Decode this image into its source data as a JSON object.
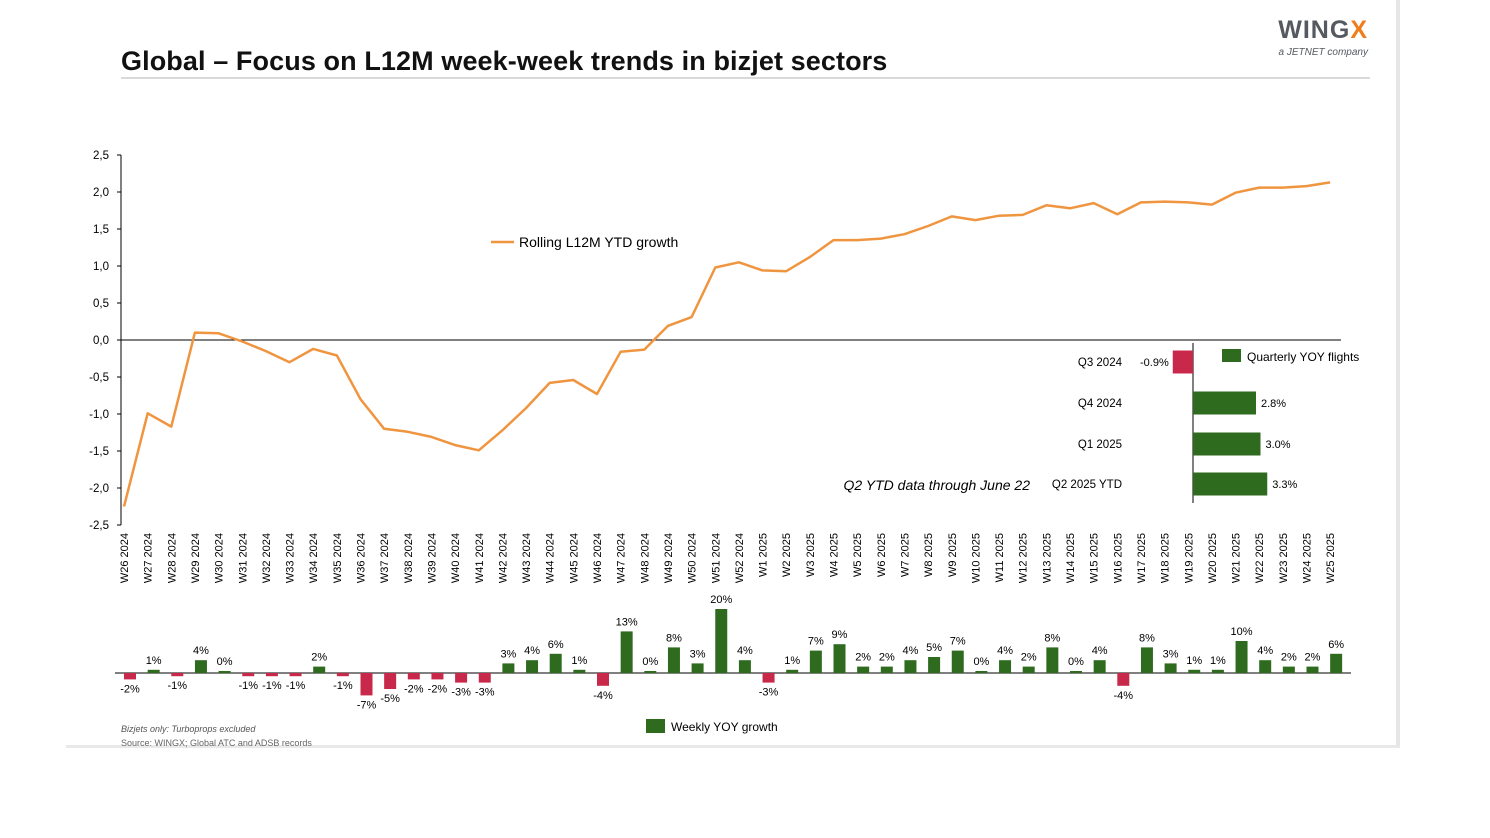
{
  "header": {
    "title": "Global – Focus on L12M week-week trends in bizjet sectors",
    "logo_word_main": "WING",
    "logo_word_x": "X",
    "logo_sub": "a JETNET company"
  },
  "footer": {
    "note": "Bizjets only: Turboprops excluded",
    "source": "Source: WINGX; Global ATC and ADSB records"
  },
  "colors": {
    "line": "#f0953f",
    "positive": "#2e6b1f",
    "negative": "#c8284a",
    "axis": "#000000"
  },
  "chart_data": [
    {
      "type": "line",
      "series": [
        {
          "name": "Rolling L12M YTD growth",
          "values": [
            -2.25,
            -0.99,
            -1.17,
            0.1,
            0.09,
            -0.02,
            -0.15,
            -0.3,
            -0.12,
            -0.21,
            -0.8,
            -1.2,
            -1.24,
            -1.31,
            -1.42,
            -1.49,
            -1.22,
            -0.92,
            -0.58,
            -0.54,
            -0.73,
            -0.16,
            -0.13,
            0.19,
            0.31,
            0.98,
            1.05,
            0.94,
            0.93,
            1.12,
            1.35,
            1.35,
            1.37,
            1.43,
            1.54,
            1.67,
            1.62,
            1.68,
            1.69,
            1.82,
            1.78,
            1.85,
            1.7,
            1.86,
            1.87,
            1.86,
            1.83,
            1.99,
            2.06,
            2.06,
            2.08,
            2.13
          ]
        }
      ],
      "categories": [
        "W26 2024",
        "W27 2024",
        "W28 2024",
        "W29 2024",
        "W30 2024",
        "W31 2024",
        "W32 2024",
        "W33 2024",
        "W34 2024",
        "W35 2024",
        "W36 2024",
        "W37 2024",
        "W38 2024",
        "W39 2024",
        "W40 2024",
        "W41 2024",
        "W42 2024",
        "W43 2024",
        "W44 2024",
        "W45 2024",
        "W46 2024",
        "W47 2024",
        "W48 2024",
        "W49 2024",
        "W50 2024",
        "W51 2024",
        "W52 2024",
        "W1 2025",
        "W2 2025",
        "W3 2025",
        "W4 2025",
        "W5 2025",
        "W6 2025",
        "W7 2025",
        "W8 2025",
        "W9 2025",
        "W10 2025",
        "W11 2025",
        "W12 2025",
        "W13 2025",
        "W14 2025",
        "W15 2025",
        "W16 2025",
        "W17 2025",
        "W18 2025",
        "W19 2025",
        "W20 2025",
        "W21 2025",
        "W22 2025",
        "W23 2025",
        "W24 2025",
        "W25 2025"
      ],
      "yticks": [
        "2,5",
        "2,0",
        "1,5",
        "1,0",
        "0,5",
        "0,0",
        "-0,5",
        "-1,0",
        "-1,5",
        "-2,0",
        "-2,5"
      ],
      "ylim": [
        -2.5,
        2.5
      ],
      "legend": "top-center",
      "grid": false
    },
    {
      "type": "bar",
      "series": [
        {
          "name": "Weekly YOY growth",
          "values": [
            -2,
            1,
            -1,
            4,
            0,
            -1,
            -1,
            -1,
            2,
            -1,
            -7,
            -5,
            -2,
            -2,
            -3,
            -3,
            3,
            4,
            6,
            1,
            -4,
            13,
            0,
            8,
            3,
            20,
            4,
            -3,
            1,
            7,
            9,
            2,
            2,
            4,
            5,
            7,
            0,
            4,
            2,
            8,
            0,
            4,
            -4,
            8,
            3,
            1,
            1,
            10,
            4,
            2,
            2,
            6
          ],
          "labels": [
            "-2%",
            "1%",
            "-1%",
            "4%",
            "0%",
            "-1%",
            "-1%",
            "-1%",
            "2%",
            "-1%",
            "-7%",
            "-5%",
            "-2%",
            "-2%",
            "-3%",
            "-3%",
            "3%",
            "4%",
            "6%",
            "1%",
            "-4%",
            "13%",
            "0%",
            "8%",
            "3%",
            "20%",
            "4%",
            "-3%",
            "1%",
            "7%",
            "9%",
            "2%",
            "2%",
            "4%",
            "5%",
            "7%",
            "0%",
            "4%",
            "2%",
            "8%",
            "0%",
            "4%",
            "-4%",
            "8%",
            "3%",
            "1%",
            "1%",
            "10%",
            "4%",
            "2%",
            "2%",
            "6%"
          ]
        }
      ],
      "legend": "bottom-center"
    },
    {
      "type": "bar",
      "orientation": "horizontal",
      "categories": [
        "Q3 2024",
        "Q4 2024",
        "Q1 2025",
        "Q2 2025 YTD"
      ],
      "series": [
        {
          "name": "Quarterly YOY flights",
          "values": [
            -0.9,
            2.8,
            3.0,
            3.3
          ],
          "labels": [
            "-0.9%",
            "2.8%",
            "3.0%",
            "3.3%"
          ]
        }
      ],
      "annotation": "Q2 YTD data through June 22",
      "legend": "top-right"
    }
  ]
}
